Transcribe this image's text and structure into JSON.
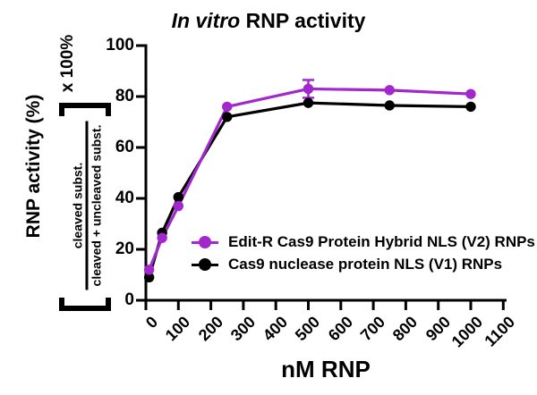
{
  "chart": {
    "title": {
      "italic": "In vitro",
      "rest": " RNP activity"
    },
    "x_axis": {
      "title": "nM RNP",
      "ticks": [
        0,
        100,
        200,
        300,
        400,
        500,
        600,
        700,
        800,
        900,
        1000,
        1100
      ]
    },
    "y_axis": {
      "main_label": "RNP activity (%)",
      "multiplier_label": "x 100%",
      "fraction_numerator": "cleaved subst.",
      "fraction_denominator": "cleaved + uncleaved subst.",
      "ticks": [
        0,
        20,
        40,
        60,
        80,
        100
      ]
    },
    "colors": {
      "axis": "#000000",
      "background": "#ffffff"
    }
  },
  "chart_data": {
    "type": "line",
    "title": "In vitro RNP activity",
    "xlabel": "nM RNP",
    "ylabel": "RNP activity (%) = [cleaved subst. / (cleaved + uncleaved subst.)] x 100%",
    "x": [
      10,
      50,
      100,
      250,
      500,
      750,
      1000
    ],
    "series": [
      {
        "name": "Cas9 nuclease protein NLS (V1) RNPs",
        "color": "#000000",
        "values": [
          9,
          26.5,
          40.5,
          72,
          77.5,
          76.5,
          76
        ],
        "error_bars": []
      },
      {
        "name": "Edit-R Cas9 Protein Hybrid NLS (V2) RNPs",
        "color": "#A228CE",
        "values": [
          12,
          24.5,
          37,
          76,
          83,
          82.5,
          81
        ],
        "error_bars": [
          {
            "x": 500,
            "plus": 3.5,
            "minus": 3.5
          }
        ]
      }
    ],
    "xlim": [
      0,
      1100
    ],
    "ylim": [
      0,
      100
    ],
    "grid": false,
    "legend_position": "inside-lower-right",
    "x_tick_rotation": 45
  }
}
